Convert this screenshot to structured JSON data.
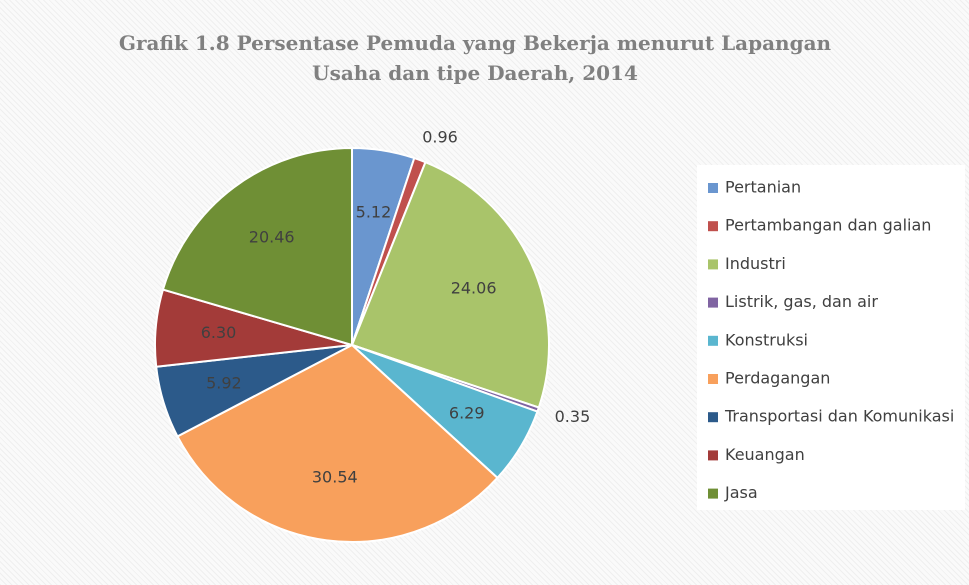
{
  "chart_data": {
    "type": "pie",
    "title": "Grafik 1.8 Persentase Pemuda yang Bekerja menurut Lapangan Usaha dan tipe Daerah, 2014",
    "categories": [
      "Pertanian",
      "Pertambangan dan galian",
      "Industri",
      "Listrik, gas, dan air",
      "Konstruksi",
      "Perdagangan",
      "Transportasi dan Komunikasi",
      "Keuangan",
      "Jasa"
    ],
    "values": [
      5.12,
      0.96,
      24.06,
      0.35,
      6.29,
      30.54,
      5.92,
      6.3,
      20.46
    ],
    "value_labels": [
      "5.12",
      "0.96",
      "24.06",
      "0.35",
      "6.29",
      "30.54",
      "5.92",
      "6.30",
      "20.46"
    ],
    "colors": [
      "#6a96cf",
      "#c0504d",
      "#a9c46a",
      "#8064a2",
      "#5ab6cf",
      "#f8a05c",
      "#2c5a8a",
      "#a33b39",
      "#6f8f35"
    ],
    "legend": "right"
  }
}
